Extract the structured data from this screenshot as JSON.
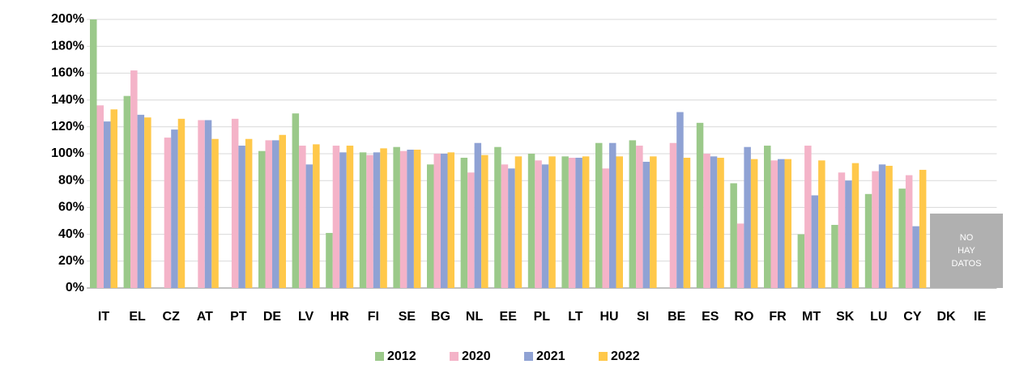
{
  "chart_data": {
    "type": "bar",
    "categories": [
      "IT",
      "EL",
      "CZ",
      "AT",
      "PT",
      "DE",
      "LV",
      "HR",
      "FI",
      "SE",
      "BG",
      "NL",
      "EE",
      "PL",
      "LT",
      "HU",
      "SI",
      "BE",
      "ES",
      "RO",
      "FR",
      "MT",
      "SK",
      "LU",
      "CY",
      "DK",
      "IE"
    ],
    "series": [
      {
        "name": "2012",
        "color": "#9bc98a",
        "values": [
          200,
          143,
          null,
          null,
          null,
          102,
          130,
          41,
          101,
          105,
          92,
          97,
          105,
          100,
          98,
          108,
          110,
          null,
          123,
          78,
          106,
          40,
          47,
          70,
          74,
          null,
          null
        ]
      },
      {
        "name": "2020",
        "color": "#f4b3c8",
        "values": [
          136,
          162,
          112,
          125,
          126,
          110,
          106,
          106,
          99,
          102,
          100,
          86,
          92,
          95,
          97,
          89,
          106,
          108,
          100,
          48,
          95,
          106,
          86,
          87,
          84,
          null,
          null
        ]
      },
      {
        "name": "2021",
        "color": "#8fa2d4",
        "values": [
          124,
          129,
          118,
          125,
          106,
          110,
          92,
          101,
          101,
          103,
          100,
          108,
          89,
          92,
          97,
          108,
          94,
          131,
          98,
          105,
          96,
          69,
          80,
          92,
          46,
          null,
          null
        ]
      },
      {
        "name": "2022",
        "color": "#ffc84a",
        "values": [
          133,
          127,
          126,
          111,
          111,
          114,
          107,
          106,
          104,
          103,
          101,
          99,
          98,
          98,
          98,
          98,
          98,
          97,
          97,
          96,
          96,
          95,
          93,
          91,
          88,
          null,
          null
        ]
      }
    ],
    "ylim": [
      0,
      200
    ],
    "yticks": [
      {
        "value": 0,
        "label": "0%"
      },
      {
        "value": 20,
        "label": "20%"
      },
      {
        "value": 40,
        "label": "40%"
      },
      {
        "value": 60,
        "label": "60%"
      },
      {
        "value": 80,
        "label": "80%"
      },
      {
        "value": 100,
        "label": "100%"
      },
      {
        "value": 120,
        "label": "120%"
      },
      {
        "value": 140,
        "label": "140%"
      },
      {
        "value": 160,
        "label": "160%"
      },
      {
        "value": 180,
        "label": "180%"
      },
      {
        "value": 200,
        "label": "200%"
      }
    ],
    "grid": true,
    "legend": "bottom",
    "annotation": "NO HAY DATOS"
  }
}
